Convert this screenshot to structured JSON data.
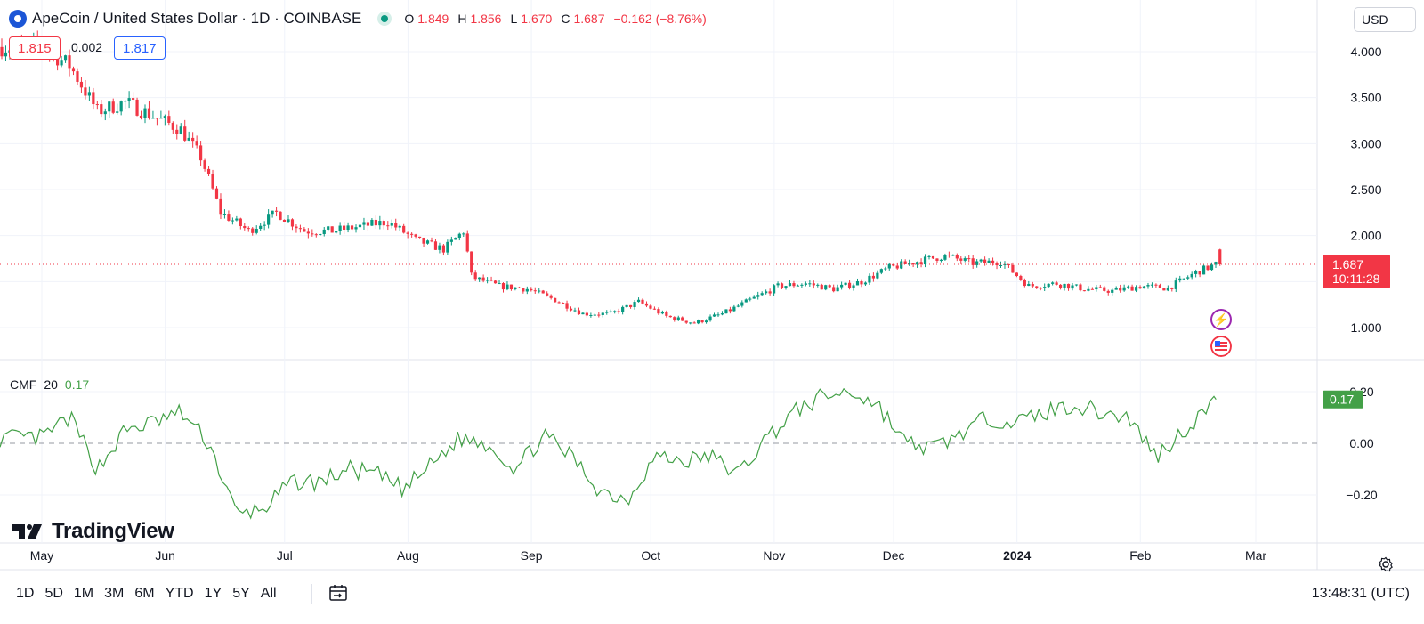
{
  "header": {
    "title": "ApeCoin / United States Dollar · 1D · COINBASE",
    "ohlc": [
      {
        "label": "O",
        "value": "1.849"
      },
      {
        "label": "H",
        "value": "1.856"
      },
      {
        "label": "L",
        "value": "1.670"
      },
      {
        "label": "C",
        "value": "1.687"
      }
    ],
    "change": "−0.162 (−8.76%)",
    "sell_price": "1.815",
    "spread": "0.002",
    "buy_price": "1.817"
  },
  "currency_button": "USD",
  "price_label": {
    "value": "1.687",
    "countdown": "10:11:28"
  },
  "cmf": {
    "name": "CMF",
    "length": "20",
    "value": "0.17",
    "label_value": "0.17"
  },
  "logo_text": "TradingView",
  "timeframes": [
    "1D",
    "5D",
    "1M",
    "3M",
    "6M",
    "YTD",
    "1Y",
    "5Y",
    "All"
  ],
  "clock": "13:48:31 (UTC)",
  "colors": {
    "up": "#089981",
    "down": "#f23645",
    "cmf": "#43a047",
    "accent": "#2962ff"
  },
  "icons": [
    "coin-icon",
    "calendar-range-icon",
    "settings-icon",
    "lightning-event-icon",
    "us-flag-event-icon"
  ],
  "chart_data": [
    {
      "type": "candlestick",
      "title": "ApeCoin / United States Dollar · 1D · COINBASE",
      "y_ticks": [
        "4.000",
        "3.500",
        "3.000",
        "2.500",
        "2.000",
        "1.000"
      ],
      "x_ticks": [
        "May",
        "Jun",
        "Jul",
        "Aug",
        "Sep",
        "Oct",
        "Nov",
        "Dec",
        "2024",
        "Feb",
        "Mar"
      ],
      "ylim": [
        0.8,
        4.3
      ],
      "last_price": 1.687,
      "grid": true,
      "series": [
        {
          "name": "close",
          "x": [
            "May 1",
            "May 8",
            "May 15",
            "May 22",
            "May 29",
            "Jun 5",
            "Jun 10",
            "Jun 15",
            "Jun 22",
            "Jun 29",
            "Jul 6",
            "Jul 13",
            "Jul 20",
            "Jul 27",
            "Aug 3",
            "Aug 10",
            "Aug 15",
            "Aug 17",
            "Aug 24",
            "Aug 31",
            "Sep 7",
            "Sep 14",
            "Sep 21",
            "Sep 28",
            "Oct 5",
            "Oct 12",
            "Oct 19",
            "Oct 26",
            "Nov 2",
            "Nov 9",
            "Nov 16",
            "Nov 23",
            "Nov 30",
            "Dec 7",
            "Dec 14",
            "Dec 21",
            "Dec 28",
            "Jan 4",
            "Jan 11",
            "Jan 18",
            "Jan 25",
            "Feb 1",
            "Feb 8",
            "Feb 15",
            "Feb 20"
          ],
          "values": [
            4.05,
            3.85,
            3.35,
            3.45,
            3.3,
            3.15,
            2.85,
            2.25,
            2.05,
            2.25,
            2.05,
            2.05,
            2.1,
            2.15,
            1.95,
            1.85,
            2.05,
            1.55,
            1.45,
            1.42,
            1.3,
            1.15,
            1.15,
            1.28,
            1.12,
            1.05,
            1.15,
            1.3,
            1.45,
            1.48,
            1.42,
            1.5,
            1.65,
            1.72,
            1.78,
            1.7,
            1.72,
            1.45,
            1.48,
            1.42,
            1.4,
            1.45,
            1.43,
            1.6,
            1.687
          ]
        }
      ]
    },
    {
      "type": "line",
      "title": "CMF 20",
      "y_ticks": [
        "0.20",
        "0.00",
        "−0.20"
      ],
      "ylim": [
        -0.36,
        0.26
      ],
      "series": [
        {
          "name": "CMF",
          "x": [
            "May 1",
            "May 8",
            "May 15",
            "May 22",
            "May 29",
            "Jun 5",
            "Jun 12",
            "Jun 19",
            "Jun 26",
            "Jul 3",
            "Jul 10",
            "Jul 17",
            "Jul 24",
            "Jul 31",
            "Aug 7",
            "Aug 14",
            "Aug 21",
            "Aug 28",
            "Sep 4",
            "Sep 11",
            "Sep 18",
            "Sep 25",
            "Oct 2",
            "Oct 9",
            "Oct 16",
            "Oct 23",
            "Oct 30",
            "Nov 6",
            "Nov 13",
            "Nov 20",
            "Nov 27",
            "Dec 4",
            "Dec 11",
            "Dec 18",
            "Dec 25",
            "Jan 1",
            "Jan 8",
            "Jan 15",
            "Jan 22",
            "Jan 29",
            "Feb 5",
            "Feb 12",
            "Feb 20"
          ],
          "values": [
            0.02,
            0.1,
            -0.1,
            0.05,
            0.08,
            0.12,
            0.0,
            -0.28,
            -0.25,
            -0.15,
            -0.15,
            -0.1,
            -0.12,
            -0.18,
            -0.08,
            0.02,
            0.0,
            -0.1,
            0.03,
            -0.05,
            -0.18,
            -0.22,
            -0.05,
            -0.07,
            -0.05,
            -0.12,
            0.02,
            0.12,
            0.18,
            0.2,
            0.15,
            0.0,
            -0.02,
            0.04,
            0.1,
            0.08,
            0.12,
            0.15,
            0.12,
            0.1,
            -0.05,
            0.05,
            0.17
          ]
        }
      ]
    }
  ]
}
